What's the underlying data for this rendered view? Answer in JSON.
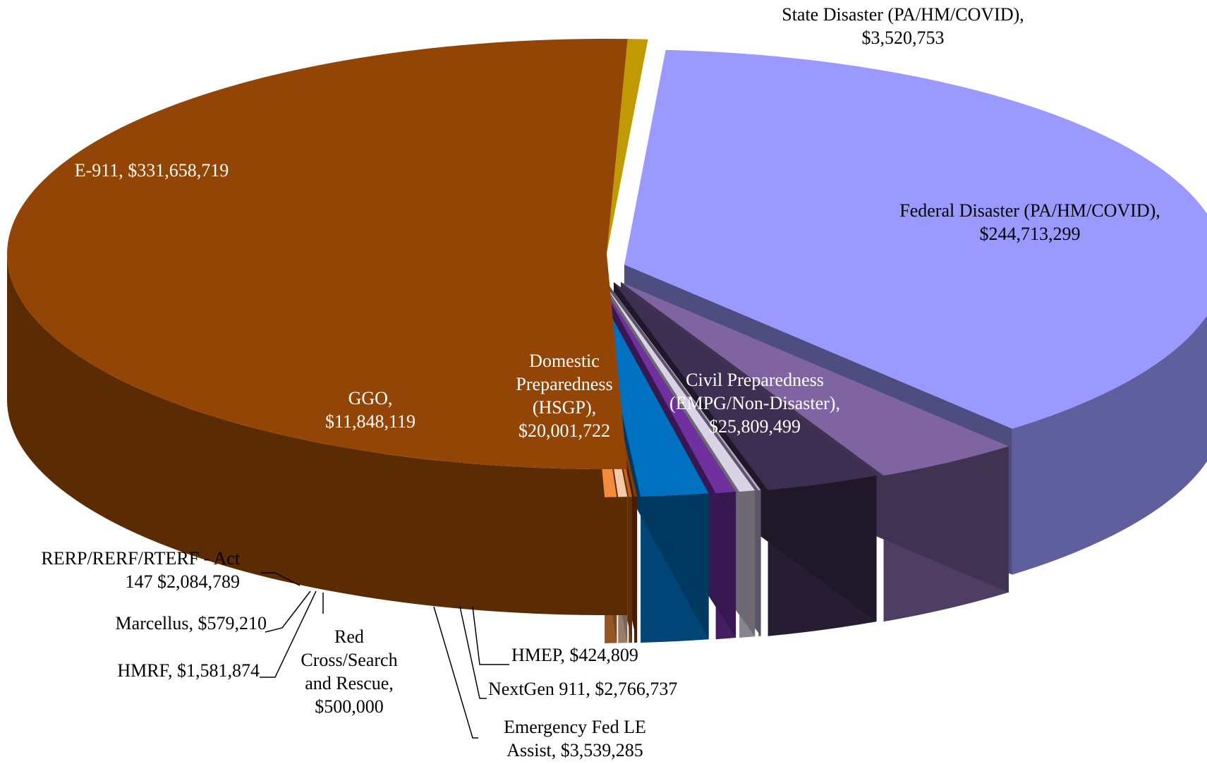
{
  "chart_data": {
    "type": "pie3d",
    "categories": [
      "State Disaster (PA/HM/COVID),",
      "Federal Disaster (PA/HM/COVID),",
      "Civil Preparedness (EMPG/Non-Disaster),",
      "Domestic Preparedness (HSGP),",
      "HMEP,",
      "NextGen 911,",
      "Emergency Fed LE Assist,",
      "GGO,",
      "Red Cross/Search and Rescue,",
      "Marcellus,",
      "HMRF,",
      "RERP/RERF/RTERF - Act 147",
      "E-911,"
    ],
    "values": [
      3520753,
      244713299,
      25809499,
      20001722,
      424809,
      2766737,
      3539285,
      11848119,
      500000,
      579210,
      1581874,
      2084789,
      331658719
    ],
    "value_labels": [
      "$3,520,753",
      "$244,713,299",
      "$25,809,499",
      "$20,001,722",
      "$424,809",
      "$2,766,737",
      "$3,539,285",
      "$11,848,119",
      "$500,000",
      "$579,210",
      "$1,581,874",
      "$2,084,789",
      "$331,658,719"
    ],
    "colors": [
      "#c09a00",
      "#9999ff",
      "#8064a2",
      "#3d2f52",
      "#b8a8d0",
      "#d9d3e6",
      "#7030a0",
      "#0070c0",
      "#8b3a00",
      "#c0601a",
      "#f5c9a8",
      "#f28c3c",
      "#934505"
    ]
  }
}
